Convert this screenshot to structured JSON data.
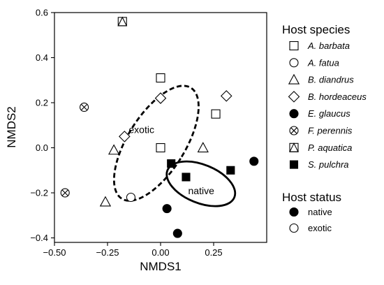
{
  "chart_data": {
    "type": "scatter",
    "xlabel": "NMDS1",
    "ylabel": "NMDS2",
    "xlim": [
      -0.5,
      0.5
    ],
    "ylim": [
      -0.42,
      0.6
    ],
    "xticks": [
      -0.5,
      -0.25,
      0.0,
      0.25
    ],
    "xtick_labels": [
      "−0.50",
      "−0.25",
      "0.00",
      "0.25"
    ],
    "yticks": [
      -0.4,
      -0.2,
      0.0,
      0.2,
      0.4,
      0.6
    ],
    "ytick_labels": [
      "−0.4",
      "−0.2",
      "0.0",
      "0.2",
      "0.4",
      "0.6"
    ],
    "grid": false,
    "legend_placement": "right",
    "legend_species_title": "Host species",
    "legend_status_title": "Host status",
    "series": [
      {
        "name": "A. barbata",
        "marker": "square-open",
        "points": [
          [
            0.0,
            0.31
          ],
          [
            0.26,
            0.15
          ],
          [
            0.0,
            0.0
          ]
        ]
      },
      {
        "name": "A. fatua",
        "marker": "circle-open",
        "points": [
          [
            -0.14,
            -0.22
          ]
        ]
      },
      {
        "name": "B. diandrus",
        "marker": "triangle-open",
        "points": [
          [
            -0.22,
            -0.01
          ],
          [
            0.2,
            0.0
          ],
          [
            -0.26,
            -0.24
          ]
        ]
      },
      {
        "name": "B. hordeaceus",
        "marker": "diamond-open",
        "points": [
          [
            0.0,
            0.22
          ],
          [
            -0.17,
            0.05
          ],
          [
            0.31,
            0.23
          ]
        ]
      },
      {
        "name": "E. glaucus",
        "marker": "circle-filled",
        "points": [
          [
            0.44,
            -0.06
          ],
          [
            0.03,
            -0.27
          ],
          [
            0.08,
            -0.38
          ]
        ]
      },
      {
        "name": "F. perennis",
        "marker": "circle-x",
        "points": [
          [
            -0.36,
            0.18
          ],
          [
            -0.45,
            -0.2
          ]
        ]
      },
      {
        "name": "P. aquatica",
        "marker": "square-triangle",
        "points": [
          [
            -0.18,
            0.56
          ]
        ]
      },
      {
        "name": "S. pulchra",
        "marker": "square-filled",
        "points": [
          [
            0.05,
            -0.07
          ],
          [
            0.12,
            -0.13
          ],
          [
            0.33,
            -0.1
          ]
        ]
      }
    ],
    "status_legend": [
      {
        "name": "native",
        "marker": "circle-filled"
      },
      {
        "name": "exotic",
        "marker": "circle-open"
      }
    ],
    "ellipses": [
      {
        "name": "exotic",
        "label": "exotic",
        "style": "dashed",
        "center": [
          -0.02,
          0.02
        ],
        "rx": 0.135,
        "ry": 0.29,
        "angle_deg": 32,
        "label_at": [
          -0.15,
          0.08
        ]
      },
      {
        "name": "native",
        "label": "native",
        "style": "solid",
        "center": [
          0.19,
          -0.16
        ],
        "rx": 0.17,
        "ry": 0.085,
        "angle_deg": 22,
        "label_at": [
          0.13,
          -0.19
        ]
      }
    ]
  }
}
